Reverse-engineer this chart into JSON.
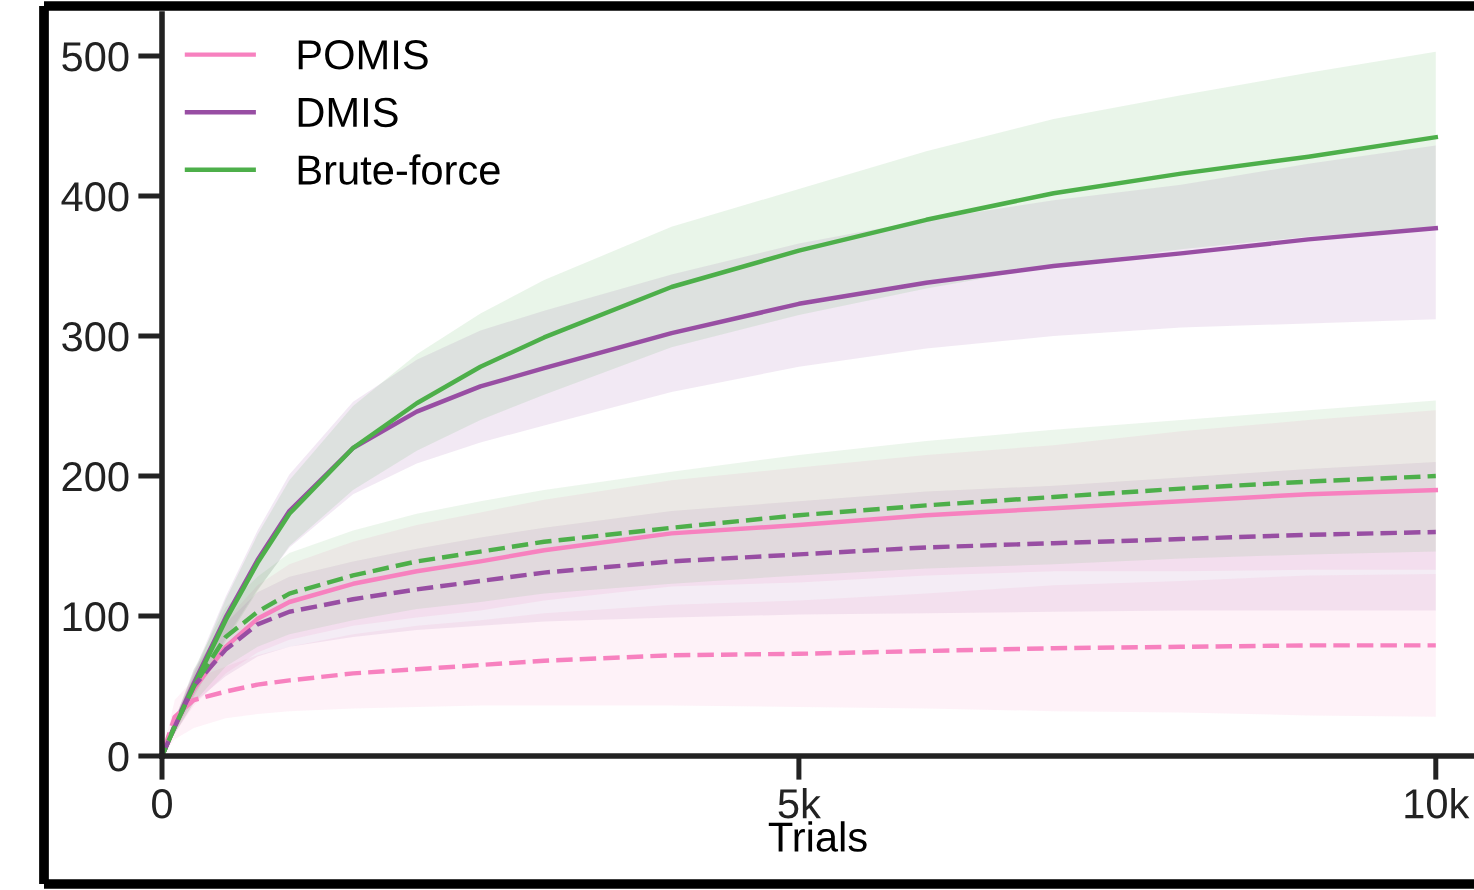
{
  "chart_data": {
    "type": "line",
    "xlabel": "Trials",
    "x": [
      0,
      100,
      250,
      500,
      750,
      1000,
      1500,
      2000,
      2500,
      3000,
      4000,
      5000,
      6000,
      7000,
      8000,
      9000,
      10000
    ],
    "xlim": [
      0,
      10300
    ],
    "xticks": [
      0,
      {
        "value": 5000,
        "label": "5k"
      },
      {
        "value": 10000,
        "label": "10k"
      }
    ],
    "ylim": [
      0,
      530
    ],
    "yticks": [
      0,
      100,
      200,
      300,
      400,
      500
    ],
    "legend": "top left",
    "grid": false,
    "series": [
      {
        "name": "POMIS",
        "color": "#f781bf",
        "line_style": "solid",
        "values": [
          0,
          21,
          48,
          78,
          98,
          110,
          123,
          132,
          139,
          147,
          159,
          165,
          172,
          177,
          182,
          187,
          190
        ],
        "upper": [
          0,
          26,
          60,
          97,
          122,
          137,
          153,
          165,
          174,
          183,
          197,
          206,
          215,
          222,
          232,
          240,
          247
        ],
        "lower": [
          0,
          16,
          36,
          59,
          74,
          83,
          93,
          99,
          104,
          111,
          121,
          124,
          129,
          132,
          132,
          133,
          133
        ]
      },
      {
        "name": "DMIS",
        "color": "#984ea3",
        "line_style": "solid",
        "values": [
          0,
          22,
          52,
          99,
          140,
          175,
          220,
          246,
          264,
          277,
          302,
          323,
          338,
          350,
          359,
          369,
          377
        ],
        "upper": [
          0,
          26,
          60,
          114,
          161,
          201,
          253,
          283,
          304,
          318,
          344,
          366,
          383,
          397,
          408,
          423,
          436
        ],
        "lower": [
          0,
          18,
          44,
          84,
          119,
          149,
          187,
          209,
          224,
          236,
          260,
          278,
          291,
          300,
          306,
          309,
          312
        ]
      },
      {
        "name": "Brute-force",
        "color": "#4daf4a",
        "line_style": "solid",
        "values": [
          0,
          21,
          50,
          97,
          138,
          173,
          220,
          252,
          278,
          299,
          335,
          361,
          383,
          402,
          416,
          428,
          442
        ],
        "upper": [
          0,
          25,
          58,
          112,
          158,
          197,
          250,
          287,
          316,
          340,
          378,
          405,
          432,
          455,
          472,
          488,
          503
        ],
        "lower": [
          0,
          17,
          42,
          82,
          118,
          150,
          190,
          218,
          240,
          258,
          292,
          315,
          334,
          350,
          362,
          371,
          378
        ]
      },
      {
        "color": "#f781bf",
        "line_style": "dashed",
        "values": [
          0,
          28,
          40,
          46,
          51,
          54,
          59,
          62,
          65,
          68,
          72,
          73,
          75,
          77,
          78,
          79,
          79
        ],
        "upper": [
          0,
          40,
          55,
          64,
          72,
          78,
          87,
          93,
          97,
          102,
          108,
          111,
          116,
          122,
          125,
          129,
          130
        ],
        "lower": [
          0,
          12,
          20,
          27,
          30,
          32,
          34,
          35,
          36,
          36,
          36,
          35,
          34,
          32,
          31,
          29,
          28
        ]
      },
      {
        "color": "#984ea3",
        "line_style": "dashed",
        "values": [
          0,
          21,
          50,
          76,
          94,
          103,
          112,
          119,
          125,
          131,
          139,
          144,
          149,
          152,
          155,
          158,
          160
        ],
        "upper": [
          0,
          26,
          62,
          95,
          117,
          128,
          139,
          148,
          156,
          163,
          175,
          182,
          189,
          193,
          199,
          205,
          210
        ],
        "lower": [
          0,
          16,
          38,
          57,
          71,
          78,
          85,
          90,
          93,
          96,
          99,
          101,
          102,
          103,
          104,
          104,
          104
        ]
      },
      {
        "color": "#4daf4a",
        "line_style": "dashed",
        "values": [
          0,
          21,
          50,
          85,
          103,
          116,
          129,
          139,
          146,
          153,
          163,
          172,
          179,
          185,
          191,
          196,
          200
        ],
        "upper": [
          0,
          26,
          62,
          106,
          128,
          145,
          161,
          173,
          182,
          190,
          203,
          215,
          225,
          233,
          240,
          247,
          254
        ],
        "lower": [
          0,
          16,
          38,
          64,
          78,
          87,
          97,
          105,
          110,
          116,
          123,
          129,
          134,
          137,
          141,
          144,
          146
        ]
      }
    ]
  }
}
